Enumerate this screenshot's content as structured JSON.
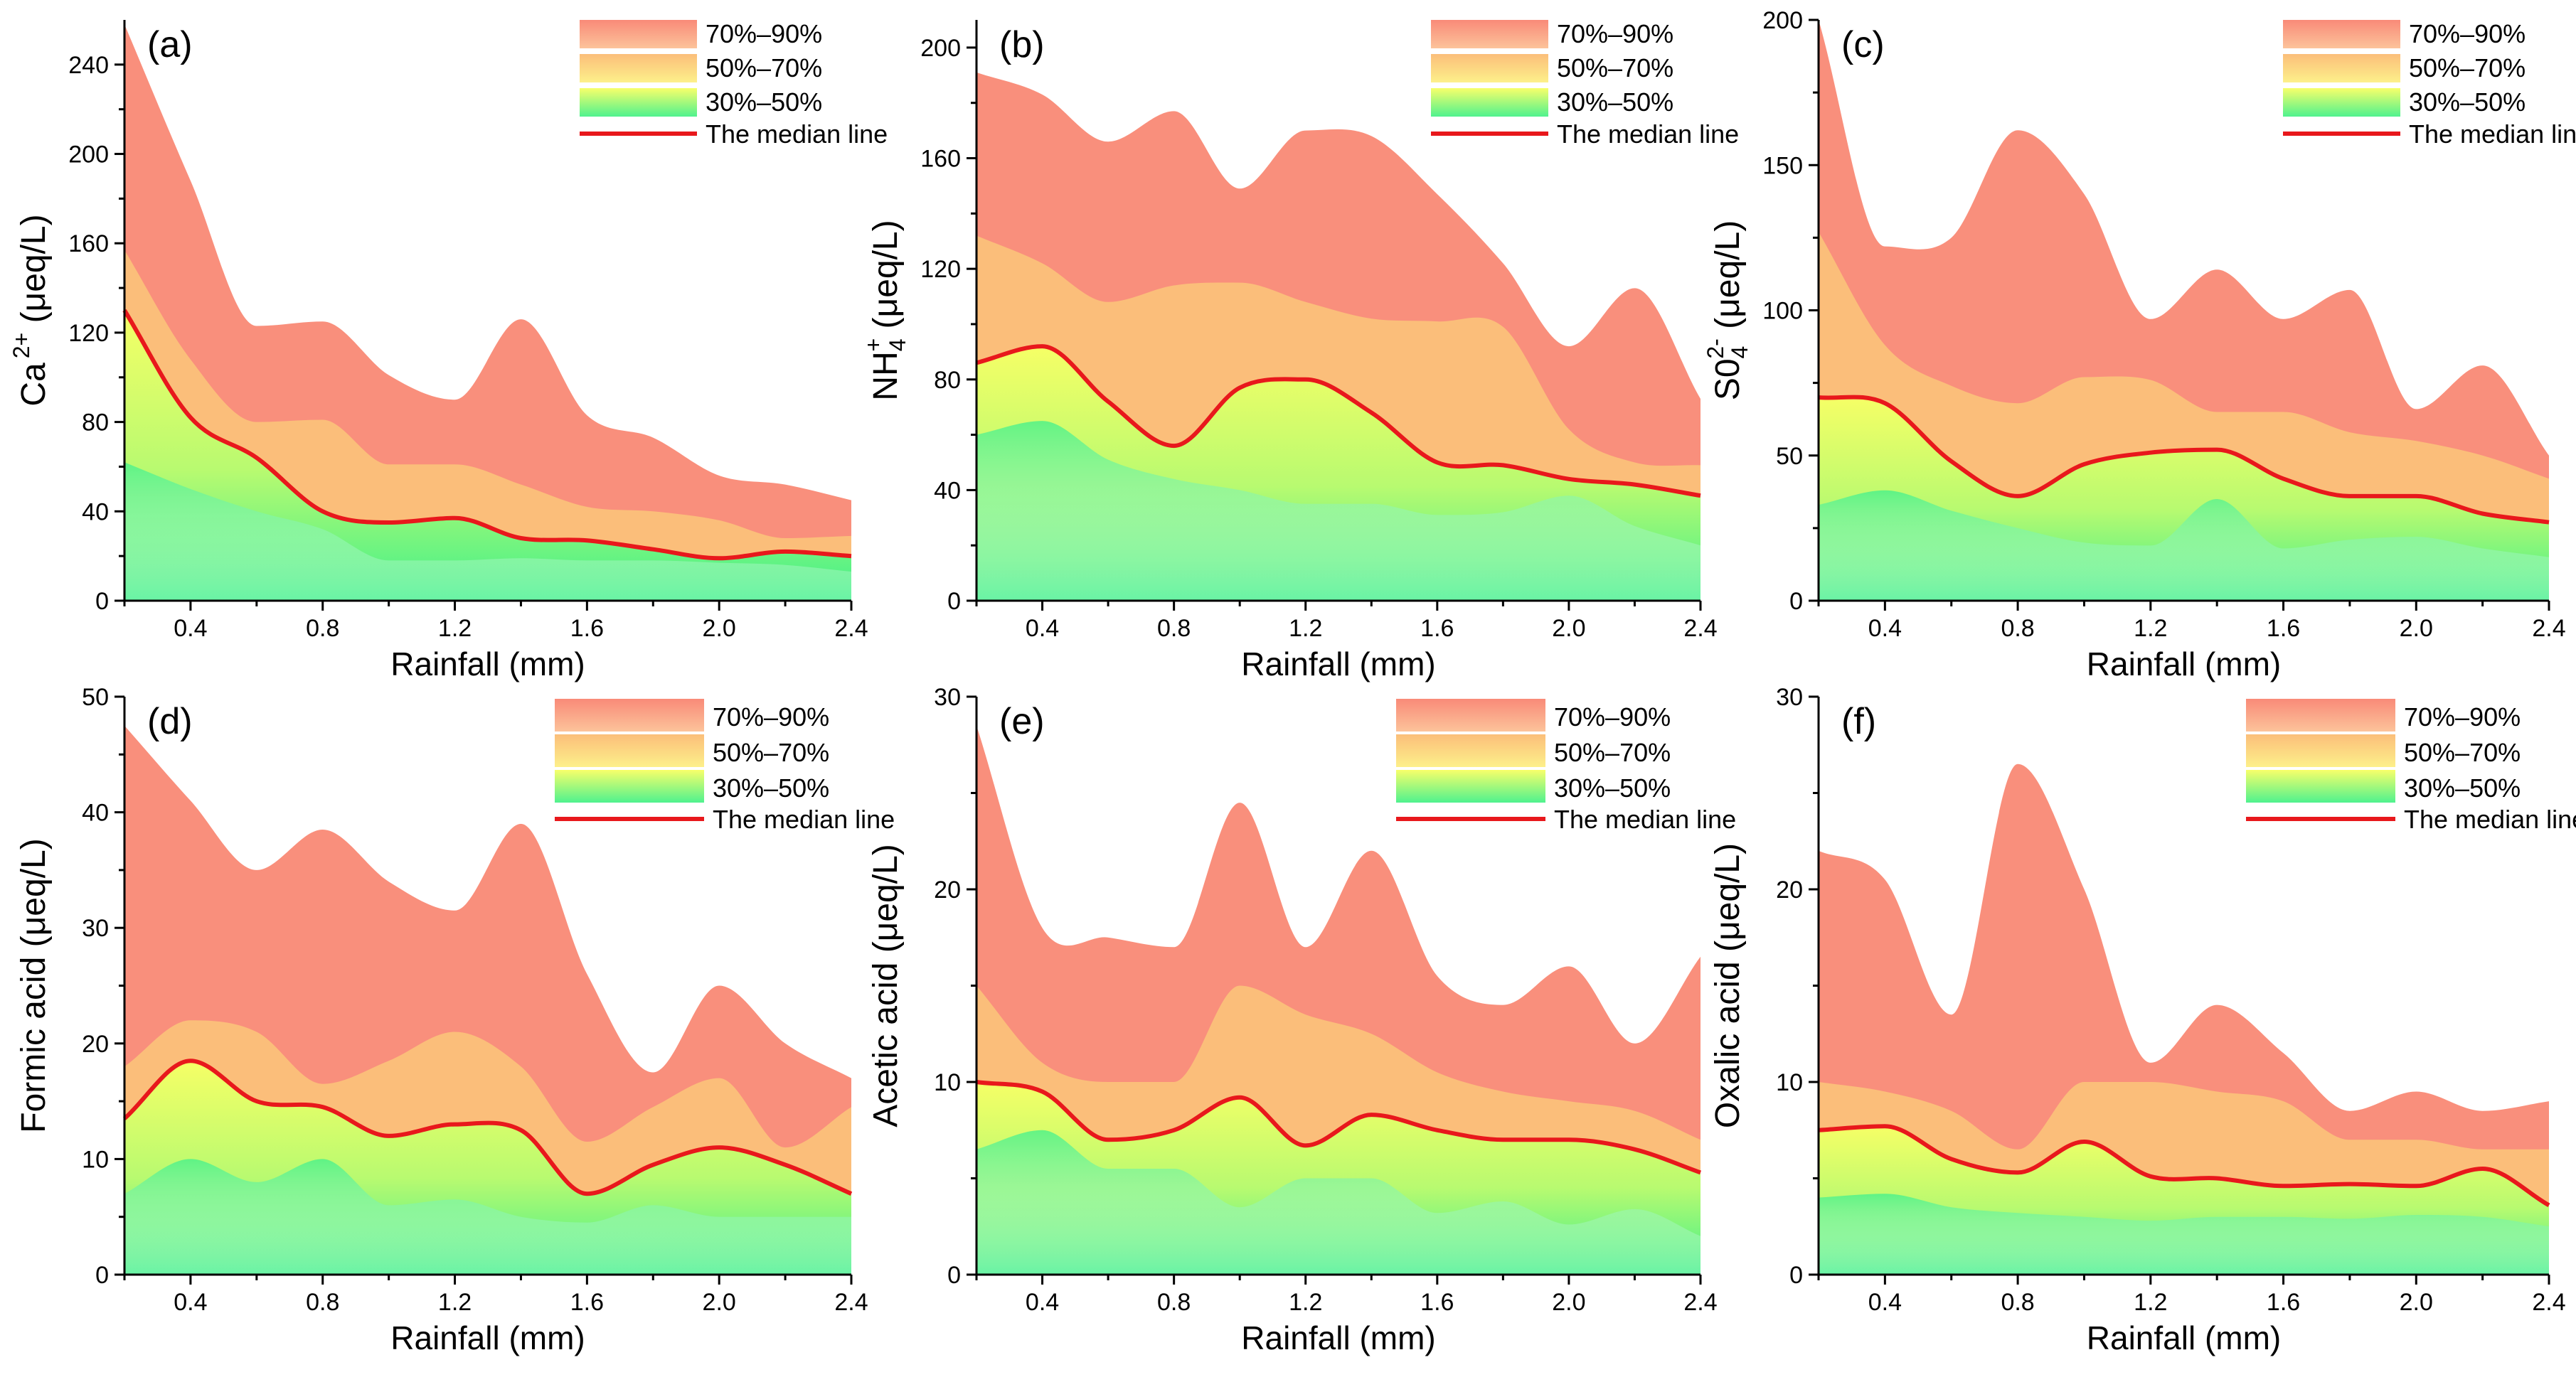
{
  "figure": {
    "x_label": "Rainfall (mm)",
    "x_ticks": [
      0.4,
      0.8,
      1.2,
      1.6,
      2.0,
      2.4
    ],
    "x_range": [
      0.2,
      2.4
    ],
    "legend": [
      "70%–90%",
      "50%–70%",
      "30%–50%",
      "The median line"
    ],
    "colors": {
      "band_70_90": "#f98f7c",
      "band_50_70": "#fbbe7a",
      "band_30_50_top": "#f6ff66",
      "band_30_50_bottom": "#3ef08c",
      "base_light": "#e9fbf0",
      "median": "#e8181c"
    }
  },
  "chart_data": [
    {
      "type": "area",
      "id": "a",
      "panel_label": "(a)",
      "ylabel": "Ca²⁺ (μeq/L)",
      "ylabel_main": "Ca",
      "ylabel_sup": "2+",
      "ylabel_tail": " (μeq/L)",
      "ylim": [
        0,
        260
      ],
      "yticks": [
        0,
        40,
        80,
        120,
        160,
        200,
        240
      ],
      "x": [
        0.2,
        0.4,
        0.6,
        0.8,
        1.0,
        1.2,
        1.4,
        1.6,
        1.8,
        2.0,
        2.2,
        2.4
      ],
      "series": [
        {
          "name": "90%",
          "values": [
            258,
            188,
            123,
            125,
            101,
            90,
            126,
            83,
            73,
            56,
            52,
            45
          ]
        },
        {
          "name": "70%",
          "values": [
            157,
            108,
            80,
            81,
            61,
            61,
            52,
            42,
            40,
            36,
            28,
            29
          ]
        },
        {
          "name": "50%",
          "values": [
            130,
            82,
            64,
            40,
            35,
            37,
            28,
            27,
            23,
            19,
            22,
            20
          ]
        },
        {
          "name": "30%",
          "values": [
            62,
            50,
            40,
            32,
            18,
            18,
            19,
            18,
            18,
            17,
            16,
            13
          ]
        }
      ]
    },
    {
      "type": "area",
      "id": "b",
      "panel_label": "(b)",
      "ylabel": "NH₄⁺ (μeq/L)",
      "ylabel_main": "NH",
      "ylabel_sub": "4",
      "ylabel_sup": "+",
      "ylabel_tail": " (μeq/L)",
      "ylim": [
        0,
        210
      ],
      "yticks": [
        0,
        40,
        80,
        120,
        160,
        200
      ],
      "x": [
        0.2,
        0.4,
        0.6,
        0.8,
        1.0,
        1.2,
        1.4,
        1.6,
        1.8,
        2.0,
        2.2,
        2.4
      ],
      "series": [
        {
          "name": "90%",
          "values": [
            191,
            183,
            166,
            177,
            149,
            170,
            168,
            147,
            122,
            92,
            113,
            73
          ]
        },
        {
          "name": "70%",
          "values": [
            132,
            122,
            108,
            114,
            115,
            108,
            102,
            101,
            99,
            62,
            50,
            49
          ]
        },
        {
          "name": "50%",
          "values": [
            86,
            92,
            72,
            56,
            77,
            80,
            68,
            50,
            49,
            44,
            42,
            38
          ]
        },
        {
          "name": "30%",
          "values": [
            60,
            65,
            51,
            44,
            40,
            35,
            35,
            31,
            32,
            38,
            27,
            20
          ]
        }
      ]
    },
    {
      "type": "area",
      "id": "c",
      "panel_label": "(c)",
      "ylabel": "SO₄²⁻ (μeq/L)",
      "ylabel_main": "S0",
      "ylabel_sub": "4",
      "ylabel_sup": "2-",
      "ylabel_tail": " (μeq/L)",
      "ylim": [
        0,
        200
      ],
      "yticks": [
        0,
        50,
        100,
        150,
        200
      ],
      "x": [
        0.2,
        0.4,
        0.6,
        0.8,
        1.0,
        1.2,
        1.4,
        1.6,
        1.8,
        2.0,
        2.2,
        2.4
      ],
      "series": [
        {
          "name": "90%",
          "values": [
            200,
            122,
            125,
            162,
            140,
            97,
            114,
            97,
            107,
            66,
            81,
            50
          ]
        },
        {
          "name": "70%",
          "values": [
            127,
            88,
            74,
            68,
            77,
            76,
            65,
            65,
            58,
            55,
            50,
            42
          ]
        },
        {
          "name": "50%",
          "values": [
            70,
            68,
            48,
            36,
            47,
            51,
            52,
            42,
            36,
            36,
            30,
            27
          ]
        },
        {
          "name": "30%",
          "values": [
            33,
            38,
            31,
            25,
            20,
            19,
            35,
            18,
            21,
            22,
            18,
            15
          ]
        }
      ]
    },
    {
      "type": "area",
      "id": "d",
      "panel_label": "(d)",
      "ylabel": "Formic acid (μeq/L)",
      "ylim": [
        0,
        50
      ],
      "yticks": [
        0,
        10,
        20,
        30,
        40,
        50
      ],
      "x": [
        0.2,
        0.4,
        0.6,
        0.8,
        1.0,
        1.2,
        1.4,
        1.6,
        1.8,
        2.0,
        2.2,
        2.4
      ],
      "series": [
        {
          "name": "90%",
          "values": [
            47.5,
            41,
            35,
            38.5,
            34,
            31.5,
            39,
            26,
            17.5,
            25,
            20,
            17
          ]
        },
        {
          "name": "70%",
          "values": [
            18,
            22,
            21,
            16.5,
            18.5,
            21,
            18,
            11.5,
            14.5,
            17,
            11,
            14.5
          ]
        },
        {
          "name": "50%",
          "values": [
            13.5,
            18.5,
            15,
            14.5,
            12,
            13,
            12.5,
            7,
            9.5,
            11,
            9.5,
            7
          ]
        },
        {
          "name": "30%",
          "values": [
            7,
            10,
            8,
            10,
            6,
            6.5,
            5,
            4.5,
            6,
            5,
            5,
            5
          ]
        }
      ]
    },
    {
      "type": "area",
      "id": "e",
      "panel_label": "(e)",
      "ylabel": "Acetic acid (μeq/L)",
      "ylim": [
        0,
        30
      ],
      "yticks": [
        0,
        10,
        20,
        30
      ],
      "x": [
        0.2,
        0.4,
        0.6,
        0.8,
        1.0,
        1.2,
        1.4,
        1.6,
        1.8,
        2.0,
        2.2,
        2.4
      ],
      "series": [
        {
          "name": "90%",
          "values": [
            28.5,
            18,
            17.5,
            17,
            24.5,
            17,
            22,
            15.5,
            14,
            16,
            12,
            16.5
          ]
        },
        {
          "name": "70%",
          "values": [
            15,
            11,
            10,
            10,
            15,
            13.5,
            12.5,
            10.5,
            9.5,
            9,
            8.5,
            7
          ]
        },
        {
          "name": "50%",
          "values": [
            10,
            9.5,
            7,
            7.5,
            9.2,
            6.7,
            8.3,
            7.5,
            7,
            7,
            6.5,
            5.3
          ]
        },
        {
          "name": "30%",
          "values": [
            6.5,
            7.5,
            5.5,
            5.5,
            3.5,
            5,
            5,
            3.2,
            3.8,
            2.6,
            3.4,
            2
          ]
        }
      ]
    },
    {
      "type": "area",
      "id": "f",
      "panel_label": "(f)",
      "ylabel": "Oxalic acid (μeq/L)",
      "ylim": [
        0,
        30
      ],
      "yticks": [
        0,
        10,
        20,
        30
      ],
      "x": [
        0.2,
        0.4,
        0.6,
        0.8,
        1.0,
        1.2,
        1.4,
        1.6,
        1.8,
        2.0,
        2.2,
        2.4
      ],
      "series": [
        {
          "name": "90%",
          "values": [
            22,
            20.5,
            13.5,
            26.5,
            20,
            11,
            14,
            11.5,
            8.5,
            9.5,
            8.5,
            9
          ]
        },
        {
          "name": "70%",
          "values": [
            10,
            9.5,
            8.5,
            6.5,
            10,
            10,
            9.5,
            9,
            7,
            7,
            6.5,
            6.5
          ]
        },
        {
          "name": "50%",
          "values": [
            7.5,
            7.7,
            6,
            5.3,
            6.9,
            5.1,
            5,
            4.6,
            4.7,
            4.6,
            5.5,
            3.6
          ]
        },
        {
          "name": "30%",
          "values": [
            4,
            4.2,
            3.5,
            3.2,
            3,
            2.8,
            3,
            3,
            2.9,
            3.1,
            3,
            2.5
          ]
        }
      ]
    }
  ]
}
